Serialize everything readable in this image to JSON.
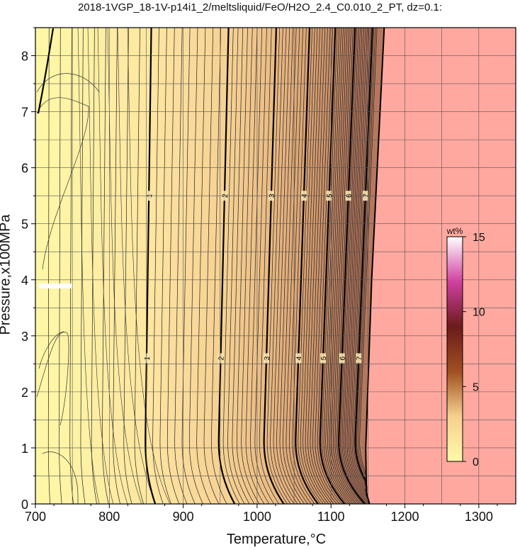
{
  "chart_data": {
    "type": "heatmap",
    "title": "2018-1VGP_18-1V-p14i1_2/meltsliquid/FeO/H2O_2.4_C0.010_2_PT, dz=0.1:",
    "xlabel": "Temperature,°C",
    "ylabel": "Pressure,x100MPa",
    "xlim": [
      700,
      1350
    ],
    "ylim": [
      0,
      8.5
    ],
    "x_ticks": [
      "700",
      "800",
      "900",
      "1000",
      "1100",
      "1200",
      "1300"
    ],
    "y_ticks": [
      "0",
      "1",
      "2",
      "3",
      "4",
      "5",
      "6",
      "7",
      "8"
    ],
    "grid": true,
    "contour_interval": 0.1,
    "major_contours": [
      {
        "label": "1",
        "value": 1,
        "temperature_at_pressure_5": 853
      },
      {
        "label": "2",
        "value": 2,
        "temperature_at_pressure_5": 955
      },
      {
        "label": "3",
        "value": 3,
        "temperature_at_pressure_5": 1018
      },
      {
        "label": "4",
        "value": 4,
        "temperature_at_pressure_5": 1062
      },
      {
        "label": "5",
        "value": 5,
        "temperature_at_pressure_5": 1096
      },
      {
        "label": "6",
        "value": 6,
        "temperature_at_pressure_5": 1122
      },
      {
        "label": "7",
        "value": 7,
        "temperature_at_pressure_5": 1145
      }
    ],
    "liquid_boundary_temperature": [
      {
        "pressure": 0,
        "temperature": 1152
      },
      {
        "pressure": 0.2,
        "temperature": 1148
      },
      {
        "pressure": 1,
        "temperature": 1147
      },
      {
        "pressure": 4,
        "temperature": 1155
      },
      {
        "pressure": 8.5,
        "temperature": 1172
      }
    ],
    "colorbar": {
      "label": "wt%",
      "range": [
        0,
        15
      ],
      "ticks": [
        "0",
        "5",
        "10",
        "15"
      ],
      "colors": [
        "#fff9a8",
        "#f6d090",
        "#a05020",
        "#6b1b1b",
        "#d040a0",
        "#ffffff"
      ]
    },
    "colors": {
      "outside_region": "#ffa8a0",
      "low": "#fff6a6"
    }
  }
}
